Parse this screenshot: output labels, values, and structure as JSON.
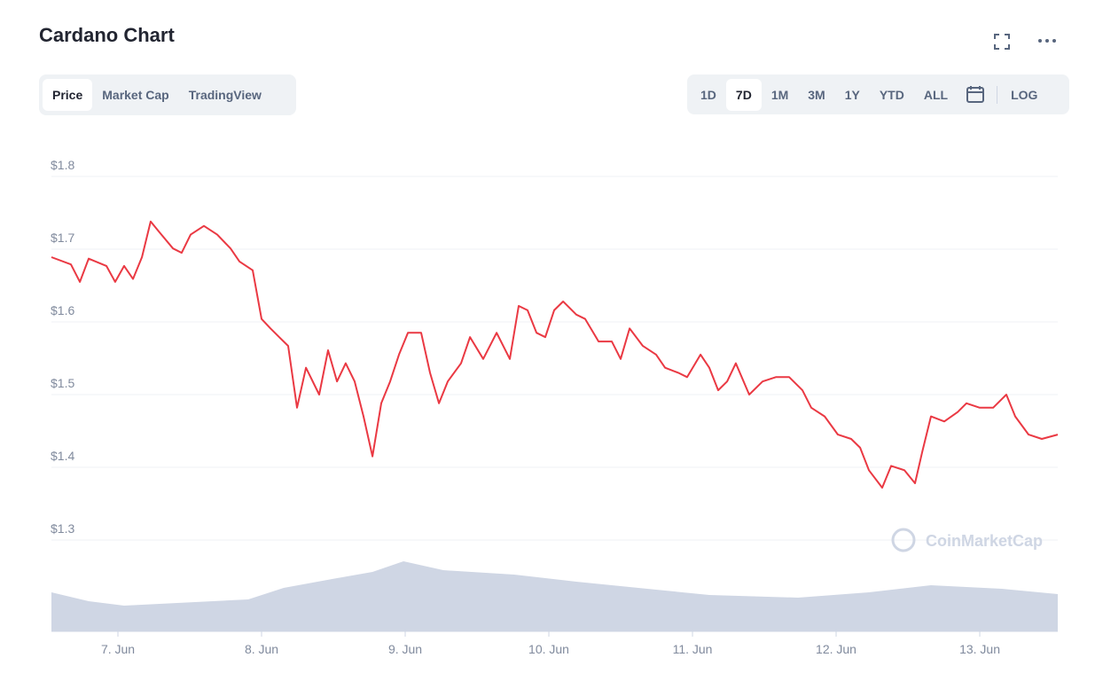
{
  "header": {
    "title": "Cardano Chart"
  },
  "tabs": [
    {
      "label": "Price",
      "active": true
    },
    {
      "label": "Market Cap",
      "active": false
    },
    {
      "label": "TradingView",
      "active": false
    }
  ],
  "ranges": [
    {
      "label": "1D",
      "active": false
    },
    {
      "label": "7D",
      "active": true
    },
    {
      "label": "1M",
      "active": false
    },
    {
      "label": "3M",
      "active": false
    },
    {
      "label": "1Y",
      "active": false
    },
    {
      "label": "YTD",
      "active": false
    },
    {
      "label": "ALL",
      "active": false
    }
  ],
  "scale_button": "LOG",
  "watermark": "CoinMarketCap",
  "chart_data": {
    "type": "line",
    "color": "#ea3943",
    "grid": true,
    "xlim": [
      -0.463,
      6.543
    ],
    "xticks": [
      {
        "value": 0,
        "label": "7. Jun"
      },
      {
        "value": 1,
        "label": "8. Jun"
      },
      {
        "value": 2,
        "label": "9. Jun"
      },
      {
        "value": 3,
        "label": "10. Jun"
      },
      {
        "value": 4,
        "label": "11. Jun"
      },
      {
        "value": 5,
        "label": "12. Jun"
      },
      {
        "value": 6,
        "label": "13. Jun"
      }
    ],
    "ylim": [
      1.3,
      1.8
    ],
    "yticks": [
      {
        "value": 1.8,
        "label": "$1.8"
      },
      {
        "value": 1.7,
        "label": "$1.7"
      },
      {
        "value": 1.6,
        "label": "$1.6"
      },
      {
        "value": 1.5,
        "label": "$1.5"
      },
      {
        "value": 1.4,
        "label": "$1.4"
      },
      {
        "value": 1.3,
        "label": "$1.3"
      }
    ],
    "x": [
      -0.463,
      -0.327,
      -0.265,
      -0.204,
      -0.08,
      -0.019,
      0.043,
      0.105,
      0.167,
      0.228,
      0.29,
      0.383,
      0.444,
      0.506,
      0.599,
      0.691,
      0.784,
      0.846,
      0.938,
      1.0,
      1.062,
      1.123,
      1.185,
      1.247,
      1.309,
      1.401,
      1.463,
      1.525,
      1.586,
      1.648,
      1.71,
      1.772,
      1.833,
      1.895,
      1.957,
      2.019,
      2.111,
      2.173,
      2.235,
      2.296,
      2.389,
      2.451,
      2.543,
      2.636,
      2.728,
      2.79,
      2.852,
      2.914,
      2.975,
      3.037,
      3.099,
      3.191,
      3.253,
      3.346,
      3.438,
      3.5,
      3.562,
      3.654,
      3.747,
      3.809,
      3.901,
      3.963,
      4.056,
      4.117,
      4.179,
      4.241,
      4.302,
      4.395,
      4.488,
      4.58,
      4.673,
      4.765,
      4.827,
      4.92,
      5.012,
      5.105,
      5.167,
      5.228,
      5.321,
      5.383,
      5.475,
      5.549,
      5.599,
      5.66,
      5.753,
      5.846,
      5.907,
      6.0,
      6.093,
      6.185,
      6.247,
      6.34,
      6.432,
      6.543
    ],
    "values": [
      1.689,
      1.679,
      1.655,
      1.687,
      1.677,
      1.655,
      1.677,
      1.659,
      1.689,
      1.738,
      1.723,
      1.701,
      1.695,
      1.72,
      1.732,
      1.72,
      1.701,
      1.683,
      1.671,
      1.604,
      1.591,
      1.579,
      1.567,
      1.482,
      1.537,
      1.5,
      1.561,
      1.518,
      1.543,
      1.518,
      1.47,
      1.415,
      1.488,
      1.518,
      1.555,
      1.585,
      1.585,
      1.53,
      1.488,
      1.518,
      1.543,
      1.579,
      1.549,
      1.585,
      1.549,
      1.622,
      1.616,
      1.585,
      1.579,
      1.616,
      1.628,
      1.61,
      1.604,
      1.573,
      1.573,
      1.549,
      1.591,
      1.567,
      1.555,
      1.537,
      1.53,
      1.524,
      1.555,
      1.537,
      1.506,
      1.518,
      1.543,
      1.5,
      1.518,
      1.524,
      1.524,
      1.506,
      1.482,
      1.47,
      1.445,
      1.439,
      1.427,
      1.396,
      1.372,
      1.402,
      1.396,
      1.378,
      1.421,
      1.47,
      1.463,
      1.476,
      1.488,
      1.482,
      1.482,
      1.5,
      1.47,
      1.445,
      1.439,
      1.445
    ],
    "volume": {
      "color": "#cfd6e4",
      "y2lim": [
        0,
        100
      ],
      "x": [
        -0.463,
        -0.204,
        0.043,
        0.414,
        0.907,
        1.154,
        1.525,
        1.772,
        1.988,
        2.265,
        2.759,
        3.191,
        3.747,
        4.117,
        4.735,
        5.228,
        5.66,
        6.154,
        6.543
      ],
      "values": [
        44,
        34,
        29,
        32,
        36,
        49,
        60,
        67,
        79,
        69,
        64,
        56,
        47,
        41,
        38,
        44,
        52,
        48,
        42
      ]
    }
  }
}
